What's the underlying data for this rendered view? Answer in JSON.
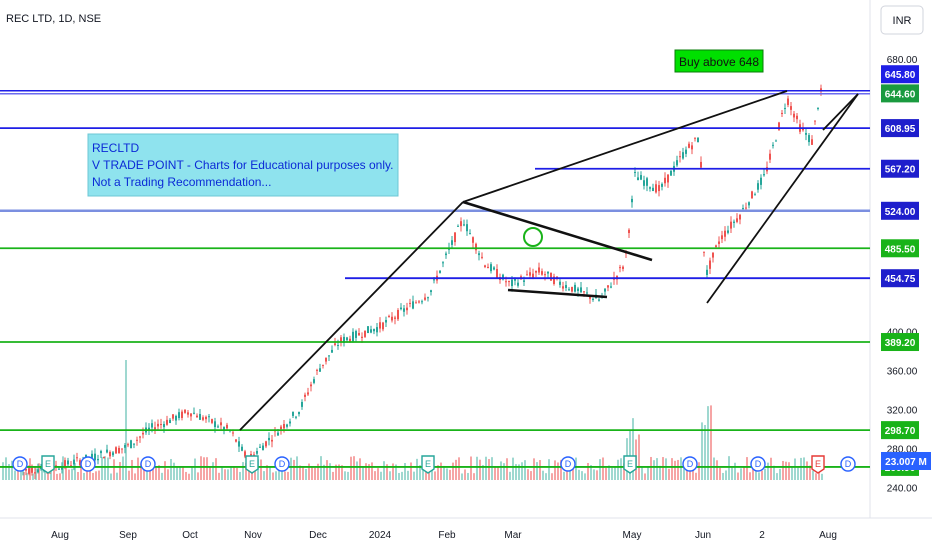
{
  "header": {
    "symbol": "REC LTD, 1D, NSE",
    "currency_button": "INR"
  },
  "annotation": {
    "buy_label": "Buy above 648",
    "note_lines": [
      "RECLTD",
      "V TRADE POINT - Charts for Educational purposes only.",
      "Not a Trading Recommendation..."
    ]
  },
  "colors": {
    "blue_line": "#1e1ee6",
    "light_blue_line": "#7b8fe0",
    "green_line": "#19b319",
    "bull_candle": "#26a69a",
    "bear_candle": "#ef5350",
    "buy_box": "#00e000",
    "note_box": "#8fe3ee"
  },
  "chart_data": {
    "type": "candlestick",
    "x_labels": [
      "Aug",
      "Sep",
      "Oct",
      "Nov",
      "Dec",
      "2024",
      "Feb",
      "Mar",
      "May",
      "Jun",
      "2",
      "Aug"
    ],
    "y_ticks": [
      680,
      400,
      360,
      320,
      280,
      240
    ],
    "ylim": [
      230,
      690
    ],
    "levels": [
      {
        "value": 645.8,
        "label": "645.80",
        "color": "blue",
        "style": "double"
      },
      {
        "value": 644.6,
        "label": "644.60",
        "color": "last_price"
      },
      {
        "value": 608.95,
        "label": "608.95",
        "color": "blue"
      },
      {
        "value": 567.2,
        "label": "567.20",
        "color": "blue"
      },
      {
        "value": 524.0,
        "label": "524.00",
        "color": "light_blue"
      },
      {
        "value": 485.5,
        "label": "485.50",
        "color": "green"
      },
      {
        "value": 454.75,
        "label": "454.75",
        "color": "blue"
      },
      {
        "value": 389.2,
        "label": "389.20",
        "color": "green"
      },
      {
        "value": 298.7,
        "label": "298.70",
        "color": "green"
      },
      {
        "value": 260.9,
        "label": "260.90",
        "color": "green"
      }
    ],
    "volume_label": "23.007 M",
    "trendlines": [
      {
        "from": [
          "Oct-end",
          262
        ],
        "to": [
          "Feb-start",
          524
        ]
      },
      {
        "from": [
          "Feb-start",
          524
        ],
        "to": [
          "Jun-end",
          648
        ]
      },
      {
        "from": [
          "Feb-start",
          524
        ],
        "to": [
          "May-start",
          465
        ]
      },
      {
        "from": [
          "Feb-end",
          437
        ],
        "to": [
          "Apr-end",
          428
        ]
      },
      {
        "from": [
          "Jun-start",
          430
        ],
        "to": [
          "Aug-start",
          645
        ]
      }
    ],
    "events": [
      "D",
      "E",
      "D",
      "D",
      "E",
      "D",
      "E",
      "D",
      "E",
      "D",
      "D",
      "E",
      "D"
    ],
    "last_price": 644.6
  }
}
